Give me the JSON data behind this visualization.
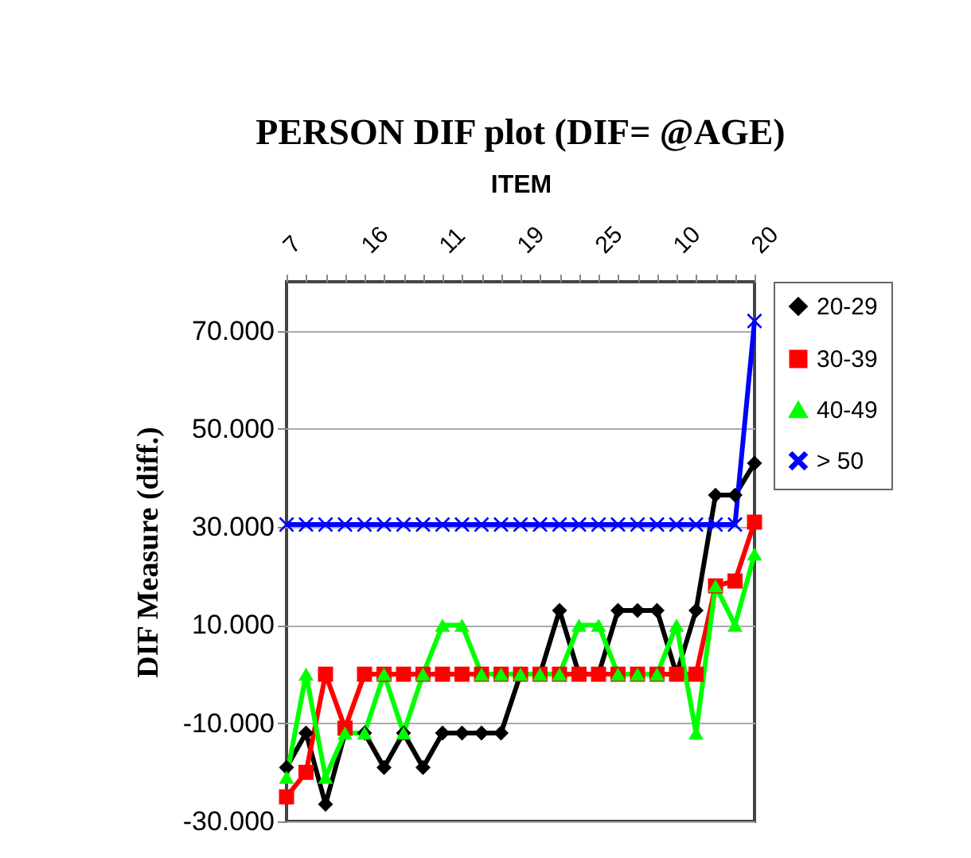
{
  "chart_data": {
    "type": "line",
    "title": "PERSON DIF plot (DIF= @AGE)",
    "xlabel": "ITEM",
    "ylabel": "DIF Measure (diff.)",
    "categories": [
      "7",
      null,
      null,
      null,
      "16",
      null,
      null,
      null,
      "11",
      null,
      null,
      null,
      "19",
      null,
      null,
      null,
      "25",
      null,
      null,
      null,
      "10",
      null,
      null,
      null,
      "20"
    ],
    "series": [
      {
        "name": "20-29",
        "color": "#000000",
        "marker": "diamond",
        "values": [
          -19,
          -12,
          -26.5,
          -12,
          -12,
          -19,
          -12,
          -19,
          -12,
          -12,
          -12,
          -12,
          0,
          0,
          13,
          0,
          0,
          13,
          13,
          13,
          0,
          13,
          36.5,
          36.5,
          43
        ]
      },
      {
        "name": "30-39",
        "color": "#ff0000",
        "marker": "square",
        "values": [
          -25,
          -20,
          0,
          -11,
          0,
          0,
          0,
          0,
          0,
          0,
          0,
          0,
          0,
          0,
          0,
          0,
          0,
          0,
          0,
          0,
          0,
          0,
          18,
          19,
          31
        ]
      },
      {
        "name": "40-49",
        "color": "#00ff00",
        "marker": "triangle",
        "values": [
          -21,
          0,
          -21,
          -12,
          -12,
          0,
          -12,
          0,
          10,
          10,
          0,
          0,
          0,
          0,
          0,
          10,
          10,
          0,
          0,
          0,
          10,
          -12,
          18,
          10,
          24.5
        ]
      },
      {
        "name": "> 50",
        "color": "#0000ff",
        "marker": "cross",
        "values": [
          30.5,
          30.5,
          30.5,
          30.5,
          30.5,
          30.5,
          30.5,
          30.5,
          30.5,
          30.5,
          30.5,
          30.5,
          30.5,
          30.5,
          30.5,
          30.5,
          30.5,
          30.5,
          30.5,
          30.5,
          30.5,
          30.5,
          30.5,
          30.5,
          72
        ]
      }
    ],
    "ylim": [
      -30,
      80
    ],
    "yticks": [
      {
        "value": -30,
        "label": "-30.000"
      },
      {
        "value": -10,
        "label": "-10.000"
      },
      {
        "value": 10,
        "label": "10.000"
      },
      {
        "value": 30,
        "label": "30.000"
      },
      {
        "value": 50,
        "label": "50.000"
      },
      {
        "value": 70,
        "label": "70.000"
      }
    ],
    "grid": "y",
    "legend": "right"
  }
}
